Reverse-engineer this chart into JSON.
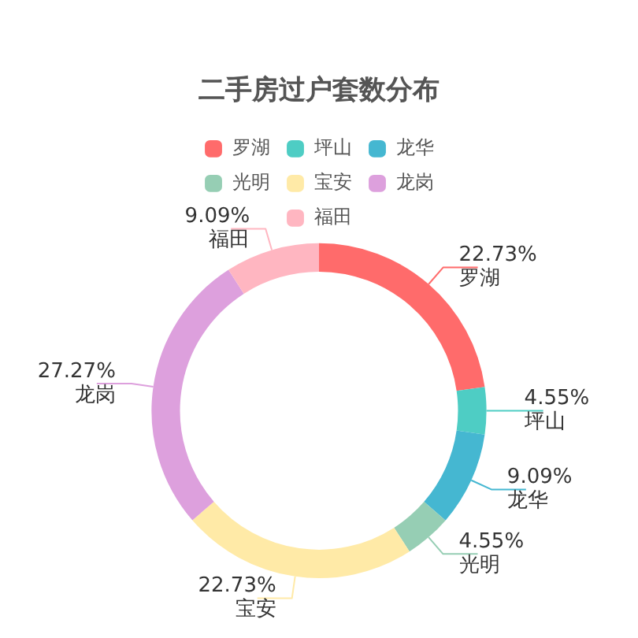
{
  "chart_data": {
    "type": "donut",
    "title": "二手房过户套数分布",
    "categories": [
      "罗湖",
      "坪山",
      "龙华",
      "光明",
      "宝安",
      "龙岗",
      "福田"
    ],
    "values": [
      22.73,
      4.55,
      9.09,
      4.55,
      22.73,
      27.27,
      9.09
    ],
    "value_labels": [
      "22.73%",
      "4.55%",
      "9.09%",
      "4.55%",
      "22.73%",
      "27.27%",
      "9.09%"
    ],
    "colors": [
      "#ff6b6b",
      "#4ecdc4",
      "#45b7d1",
      "#96ceb4",
      "#ffeaa7",
      "#dda0dd",
      "#ffb6c1"
    ],
    "legend": "top"
  }
}
